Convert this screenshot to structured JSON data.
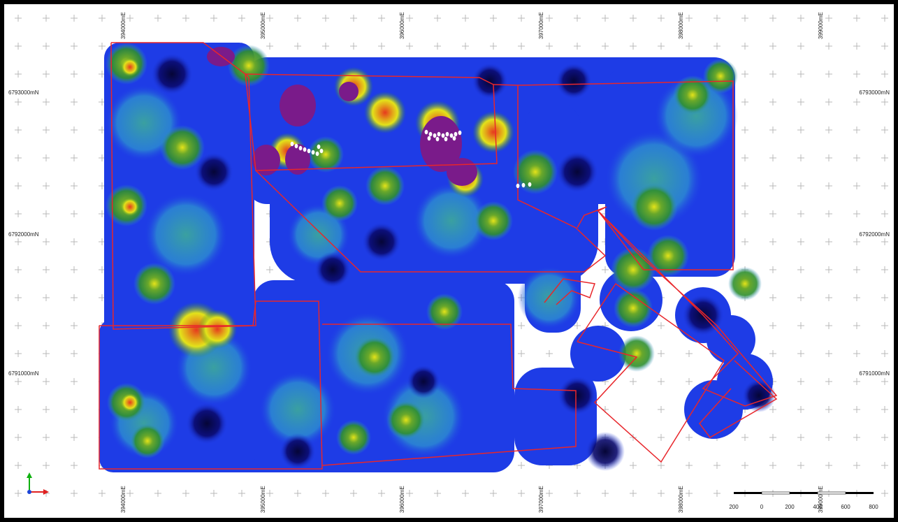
{
  "map": {
    "x_labels_top": [
      "394000mE",
      "395000mE",
      "396000mE",
      "397000mE",
      "398000mE",
      "399000mE"
    ],
    "x_labels_bottom": [
      "394000mE",
      "395000mE",
      "396000mE",
      "397000mE",
      "398000mE",
      "399000mE"
    ],
    "y_labels_left": [
      "6793000mN",
      "6792000mN",
      "6791000mN"
    ],
    "y_labels_right": [
      "6793000mN",
      "6792000mN",
      "6791000mN"
    ],
    "scale_bar": {
      "labels": [
        "200",
        "0",
        "200",
        "400",
        "600",
        "800"
      ]
    },
    "colors": {
      "boundary": "#e8262b",
      "low": "#0a0a6e",
      "mid_low": "#1e3ce6",
      "mid": "#2d8fd0",
      "mid_high": "#2f8f2f",
      "high": "#e3e31a",
      "very_high": "#e63a1e",
      "peak": "#7a1b8a",
      "drill_hole": "#ffffff",
      "axis_x": "#e02020",
      "axis_y": "#10b010",
      "axis_z": "#1c44d8"
    }
  }
}
